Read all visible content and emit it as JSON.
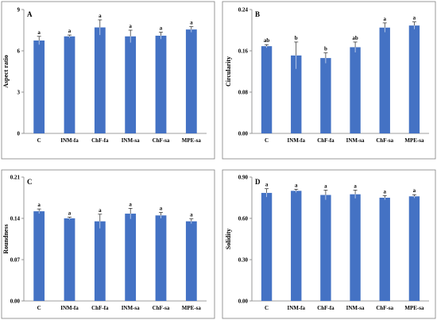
{
  "figure": {
    "bar_color": "#4472c4",
    "axis_color": "#7f7f7f"
  },
  "chart_data": [
    {
      "type": "bar",
      "panel_label": "A",
      "ylabel": "Aspect ratio",
      "ylim": [
        0,
        9
      ],
      "yticks": [
        "0",
        "3",
        "6",
        "9"
      ],
      "categories": [
        "C",
        "INM-fa",
        "ChF-fa",
        "INM-sa",
        "ChF-sa",
        "MPE-sa"
      ],
      "values": [
        6.75,
        7.05,
        7.7,
        7.05,
        7.1,
        7.55
      ],
      "errors": [
        0.3,
        0.1,
        0.55,
        0.45,
        0.25,
        0.2
      ],
      "letters": [
        "a",
        "a",
        "a",
        "a",
        "a",
        "a"
      ]
    },
    {
      "type": "bar",
      "panel_label": "B",
      "ylabel": "Circularity",
      "ylim": [
        0,
        0.24
      ],
      "yticks": [
        "0.00",
        "0.08",
        "0.16",
        "0.24"
      ],
      "categories": [
        "C",
        "INM-fa",
        "ChF-fa",
        "INM-sa",
        "ChF-sa",
        "MPE-sa"
      ],
      "values": [
        0.169,
        0.151,
        0.146,
        0.167,
        0.205,
        0.209
      ],
      "errors": [
        0.003,
        0.026,
        0.01,
        0.01,
        0.009,
        0.007
      ],
      "letters": [
        "ab",
        "b",
        "b",
        "ab",
        "a",
        "a"
      ]
    },
    {
      "type": "bar",
      "panel_label": "C",
      "ylabel": "Roundness",
      "ylim": [
        0,
        0.21
      ],
      "yticks": [
        "0.00",
        "0.07",
        "0.14",
        "0.21"
      ],
      "categories": [
        "C",
        "INM-fa",
        "ChF-fa",
        "INM-sa",
        "ChF-sa",
        "MPE-sa"
      ],
      "values": [
        0.152,
        0.14,
        0.135,
        0.148,
        0.145,
        0.135
      ],
      "errors": [
        0.004,
        0.002,
        0.012,
        0.009,
        0.005,
        0.004
      ],
      "letters": [
        "a",
        "a",
        "a",
        "a",
        "a",
        "a"
      ]
    },
    {
      "type": "bar",
      "panel_label": "D",
      "ylabel": "Solidity",
      "ylim": [
        0,
        0.9
      ],
      "yticks": [
        "0.00",
        "0.30",
        "0.60",
        "0.90"
      ],
      "categories": [
        "C",
        "INM-fa",
        "ChF-fa",
        "INM-sa",
        "ChF-sa",
        "MPE-sa"
      ],
      "values": [
        0.785,
        0.8,
        0.77,
        0.775,
        0.75,
        0.76
      ],
      "errors": [
        0.03,
        0.012,
        0.035,
        0.03,
        0.015,
        0.012
      ],
      "letters": [
        "a",
        "a",
        "a",
        "a",
        "a",
        "a"
      ]
    }
  ]
}
